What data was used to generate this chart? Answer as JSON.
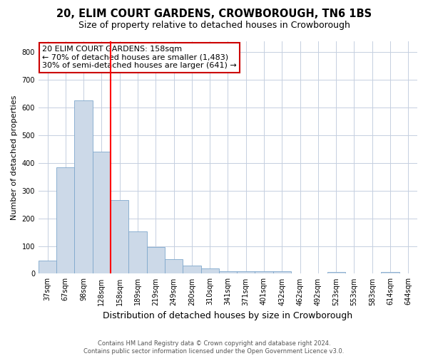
{
  "title": "20, ELIM COURT GARDENS, CROWBOROUGH, TN6 1BS",
  "subtitle": "Size of property relative to detached houses in Crowborough",
  "xlabel": "Distribution of detached houses by size in Crowborough",
  "ylabel": "Number of detached properties",
  "categories": [
    "37sqm",
    "67sqm",
    "98sqm",
    "128sqm",
    "158sqm",
    "189sqm",
    "219sqm",
    "249sqm",
    "280sqm",
    "310sqm",
    "341sqm",
    "371sqm",
    "401sqm",
    "432sqm",
    "462sqm",
    "492sqm",
    "523sqm",
    "553sqm",
    "583sqm",
    "614sqm",
    "644sqm"
  ],
  "values": [
    48,
    385,
    625,
    440,
    265,
    153,
    97,
    53,
    30,
    18,
    10,
    10,
    10,
    10,
    2,
    0,
    7,
    0,
    0,
    5,
    0
  ],
  "bar_color": "#ccd9e8",
  "bar_edgecolor": "#7fa8cc",
  "red_line_x": 3.5,
  "ylim": [
    0,
    840
  ],
  "yticks": [
    0,
    100,
    200,
    300,
    400,
    500,
    600,
    700,
    800
  ],
  "annotation_text": "20 ELIM COURT GARDENS: 158sqm\n← 70% of detached houses are smaller (1,483)\n30% of semi-detached houses are larger (641) →",
  "annotation_box_color": "#ffffff",
  "annotation_box_edgecolor": "#cc0000",
  "footer_line1": "Contains HM Land Registry data © Crown copyright and database right 2024.",
  "footer_line2": "Contains public sector information licensed under the Open Government Licence v3.0.",
  "background_color": "#ffffff",
  "grid_color": "#c5cfe0",
  "title_fontsize": 10.5,
  "subtitle_fontsize": 9,
  "ylabel_fontsize": 8,
  "xlabel_fontsize": 9,
  "tick_fontsize": 7,
  "annotation_fontsize": 8,
  "footer_fontsize": 6
}
